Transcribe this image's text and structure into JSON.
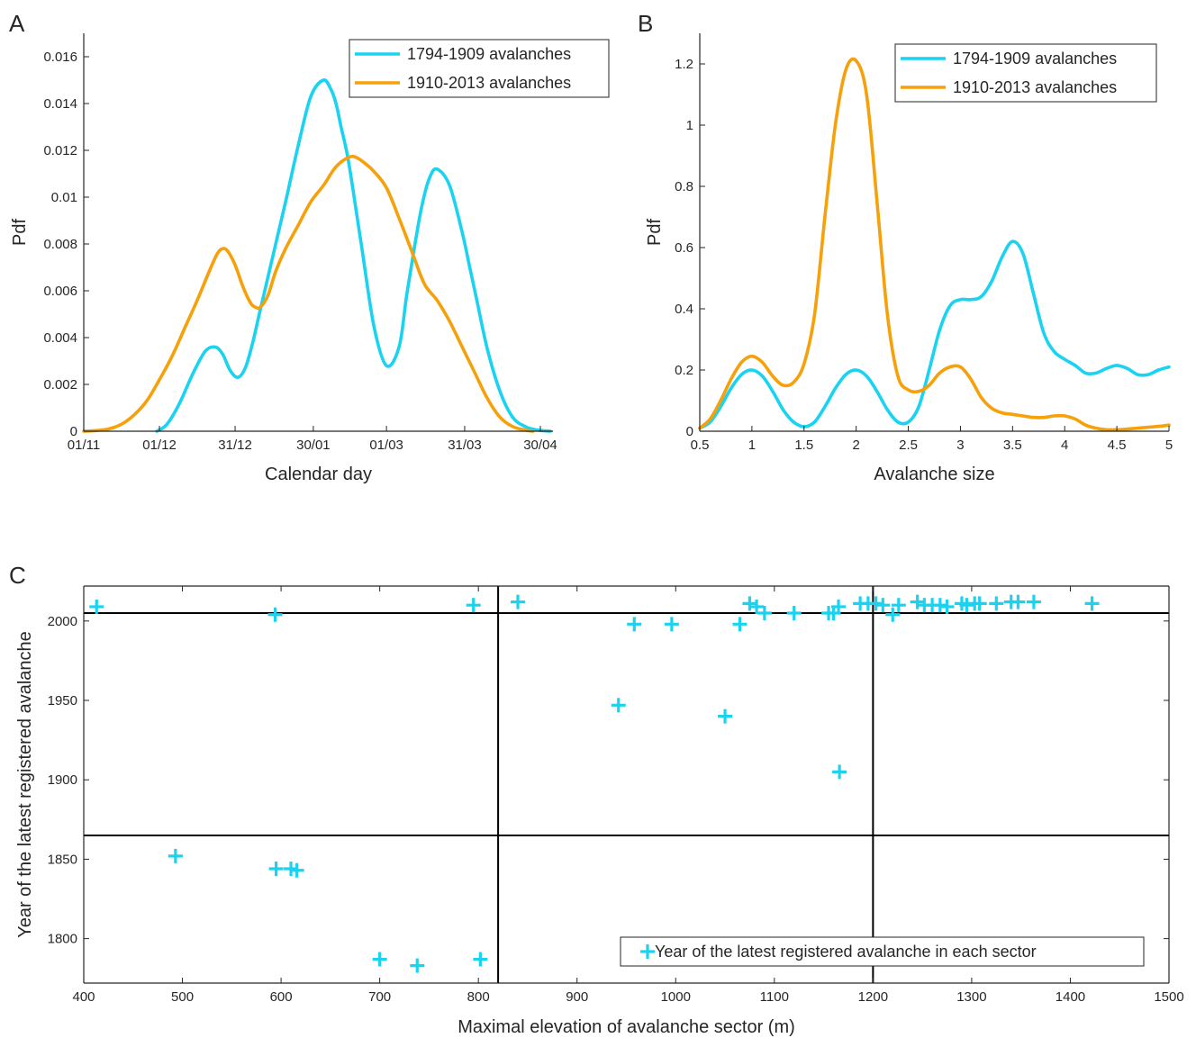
{
  "panels": {
    "A": {
      "letter": "A"
    },
    "B": {
      "letter": "B"
    },
    "C": {
      "letter": "C"
    }
  },
  "colors": {
    "cyan": "#19d3f0",
    "orange": "#f6a00a",
    "axis": "#262626",
    "refline": "#000000"
  },
  "chart_data": [
    {
      "id": "A",
      "type": "line",
      "xlabel": "Calendar day",
      "ylabel": "Pdf",
      "xlim": [
        0,
        186
      ],
      "ylim": [
        0,
        0.017
      ],
      "x_unit": "days since 01/11",
      "xticks": [
        {
          "value": 0,
          "label": "01/11"
        },
        {
          "value": 30,
          "label": "01/12"
        },
        {
          "value": 60,
          "label": "31/12"
        },
        {
          "value": 91,
          "label": "30/01"
        },
        {
          "value": 120,
          "label": "01/03"
        },
        {
          "value": 151,
          "label": "31/03"
        },
        {
          "value": 181,
          "label": "30/04"
        }
      ],
      "yticks": [
        {
          "value": 0,
          "label": "0"
        },
        {
          "value": 0.002,
          "label": "0.002"
        },
        {
          "value": 0.004,
          "label": "0.004"
        },
        {
          "value": 0.006,
          "label": "0.006"
        },
        {
          "value": 0.008,
          "label": "0.008"
        },
        {
          "value": 0.01,
          "label": "0.01"
        },
        {
          "value": 0.012,
          "label": "0.012"
        },
        {
          "value": 0.014,
          "label": "0.014"
        },
        {
          "value": 0.016,
          "label": "0.016"
        }
      ],
      "legend": "top-right",
      "grid": false,
      "series": [
        {
          "name": "1794-1909 avalanches",
          "color": "#19d3f0",
          "x": [
            29,
            33,
            38,
            43,
            48,
            52,
            55,
            58,
            61,
            64,
            67,
            70,
            75,
            80,
            85,
            90,
            95,
            98,
            100,
            102,
            105,
            110,
            115,
            120,
            125,
            128,
            131,
            134,
            137,
            140,
            145,
            150,
            153,
            156,
            160,
            165,
            170,
            175,
            180,
            185
          ],
          "y": [
            0,
            0.0003,
            0.0012,
            0.0024,
            0.0034,
            0.0036,
            0.0033,
            0.0026,
            0.0023,
            0.0027,
            0.0038,
            0.0052,
            0.0075,
            0.0098,
            0.0122,
            0.0143,
            0.015,
            0.0146,
            0.014,
            0.013,
            0.0115,
            0.008,
            0.0045,
            0.0028,
            0.0036,
            0.0058,
            0.0078,
            0.0096,
            0.0108,
            0.0112,
            0.0105,
            0.0085,
            0.007,
            0.0055,
            0.0035,
            0.0017,
            0.0006,
            0.0002,
            5e-05,
            0
          ]
        },
        {
          "name": "1910-2013 avalanches",
          "color": "#f6a00a",
          "x": [
            0,
            5,
            10,
            15,
            20,
            25,
            30,
            35,
            40,
            45,
            50,
            53,
            55,
            57,
            60,
            63,
            66,
            68,
            70,
            73,
            76,
            80,
            85,
            90,
            95,
            100,
            105,
            108,
            112,
            115,
            120,
            125,
            130,
            135,
            140,
            145,
            150,
            155,
            160,
            165,
            170,
            175,
            178
          ],
          "y": [
            0,
            3e-05,
            0.0001,
            0.0003,
            0.0007,
            0.0013,
            0.0022,
            0.0032,
            0.0044,
            0.0056,
            0.0069,
            0.0076,
            0.0078,
            0.0077,
            0.0071,
            0.0062,
            0.0055,
            0.0053,
            0.0053,
            0.0058,
            0.0068,
            0.0078,
            0.0088,
            0.0098,
            0.0105,
            0.0113,
            0.0117,
            0.0117,
            0.0114,
            0.0111,
            0.0104,
            0.0091,
            0.0077,
            0.0063,
            0.0056,
            0.0047,
            0.0036,
            0.0025,
            0.0014,
            0.0006,
            0.0002,
            5e-05,
            0
          ]
        }
      ]
    },
    {
      "id": "B",
      "type": "line",
      "xlabel": "Avalanche size",
      "ylabel": "Pdf",
      "xlim": [
        0.5,
        5
      ],
      "ylim": [
        0,
        1.3
      ],
      "xticks": [
        {
          "value": 0.5,
          "label": "0.5"
        },
        {
          "value": 1,
          "label": "1"
        },
        {
          "value": 1.5,
          "label": "1.5"
        },
        {
          "value": 2,
          "label": "2"
        },
        {
          "value": 2.5,
          "label": "2.5"
        },
        {
          "value": 3,
          "label": "3"
        },
        {
          "value": 3.5,
          "label": "3.5"
        },
        {
          "value": 4,
          "label": "4"
        },
        {
          "value": 4.5,
          "label": "4.5"
        },
        {
          "value": 5,
          "label": "5"
        }
      ],
      "yticks": [
        {
          "value": 0,
          "label": "0"
        },
        {
          "value": 0.2,
          "label": "0.2"
        },
        {
          "value": 0.4,
          "label": "0.4"
        },
        {
          "value": 0.6,
          "label": "0.6"
        },
        {
          "value": 0.8,
          "label": "0.8"
        },
        {
          "value": 1,
          "label": "1"
        },
        {
          "value": 1.2,
          "label": "1.2"
        }
      ],
      "legend": "top-right",
      "grid": false,
      "series": [
        {
          "name": "1794-1909 avalanches",
          "color": "#19d3f0",
          "x": [
            0.5,
            0.6,
            0.7,
            0.8,
            0.9,
            1.0,
            1.1,
            1.2,
            1.3,
            1.4,
            1.5,
            1.6,
            1.7,
            1.8,
            1.9,
            2.0,
            2.1,
            2.2,
            2.3,
            2.4,
            2.5,
            2.6,
            2.7,
            2.8,
            2.9,
            3.0,
            3.1,
            3.2,
            3.3,
            3.4,
            3.5,
            3.6,
            3.7,
            3.8,
            3.9,
            4.0,
            4.1,
            4.2,
            4.3,
            4.4,
            4.5,
            4.6,
            4.7,
            4.8,
            4.9,
            5.0
          ],
          "y": [
            0.01,
            0.03,
            0.08,
            0.14,
            0.185,
            0.2,
            0.18,
            0.13,
            0.07,
            0.03,
            0.015,
            0.03,
            0.08,
            0.14,
            0.185,
            0.2,
            0.18,
            0.13,
            0.07,
            0.03,
            0.03,
            0.08,
            0.2,
            0.33,
            0.41,
            0.43,
            0.43,
            0.44,
            0.49,
            0.57,
            0.62,
            0.58,
            0.45,
            0.32,
            0.26,
            0.235,
            0.215,
            0.19,
            0.19,
            0.205,
            0.215,
            0.205,
            0.185,
            0.185,
            0.2,
            0.21
          ]
        },
        {
          "name": "1910-2013 avalanches",
          "color": "#f6a00a",
          "x": [
            0.5,
            0.6,
            0.7,
            0.8,
            0.9,
            1.0,
            1.1,
            1.2,
            1.3,
            1.4,
            1.5,
            1.6,
            1.7,
            1.8,
            1.9,
            2.0,
            2.1,
            2.2,
            2.3,
            2.4,
            2.5,
            2.6,
            2.7,
            2.8,
            2.9,
            3.0,
            3.1,
            3.2,
            3.3,
            3.4,
            3.5,
            3.6,
            3.7,
            3.8,
            3.9,
            4.0,
            4.1,
            4.2,
            4.3,
            4.4,
            4.5,
            4.6,
            4.7,
            4.8,
            4.9,
            5.0
          ],
          "y": [
            0.01,
            0.04,
            0.1,
            0.17,
            0.225,
            0.245,
            0.225,
            0.18,
            0.15,
            0.16,
            0.22,
            0.38,
            0.7,
            1.0,
            1.18,
            1.21,
            1.1,
            0.75,
            0.38,
            0.18,
            0.135,
            0.13,
            0.15,
            0.19,
            0.21,
            0.21,
            0.17,
            0.11,
            0.075,
            0.06,
            0.055,
            0.05,
            0.045,
            0.045,
            0.05,
            0.05,
            0.04,
            0.02,
            0.01,
            0.005,
            0.005,
            0.007,
            0.01,
            0.013,
            0.016,
            0.02
          ]
        }
      ]
    },
    {
      "id": "C",
      "type": "scatter",
      "xlabel": "Maximal elevation of avalanche sector (m)",
      "ylabel": "Year of the latest registered avalanche",
      "xlim": [
        400,
        1500
      ],
      "ylim": [
        1772,
        2022
      ],
      "xticks": [
        {
          "value": 400,
          "label": "400"
        },
        {
          "value": 500,
          "label": "500"
        },
        {
          "value": 600,
          "label": "600"
        },
        {
          "value": 700,
          "label": "700"
        },
        {
          "value": 800,
          "label": "800"
        },
        {
          "value": 900,
          "label": "900"
        },
        {
          "value": 1000,
          "label": "1000"
        },
        {
          "value": 1100,
          "label": "1100"
        },
        {
          "value": 1200,
          "label": "1200"
        },
        {
          "value": 1300,
          "label": "1300"
        },
        {
          "value": 1400,
          "label": "1400"
        },
        {
          "value": 1500,
          "label": "1500"
        }
      ],
      "yticks": [
        {
          "value": 1800,
          "label": "1800"
        },
        {
          "value": 1850,
          "label": "1850"
        },
        {
          "value": 1900,
          "label": "1900"
        },
        {
          "value": 1950,
          "label": "1950"
        },
        {
          "value": 2000,
          "label": "2000"
        }
      ],
      "legend": "bottom-right",
      "grid": false,
      "reference_lines": {
        "vertical": [
          820,
          1200
        ],
        "horizontal": [
          1865,
          2005
        ]
      },
      "series": [
        {
          "name": "Year of the latest registered avalanche in each sector",
          "color": "#19d3f0",
          "marker": "+",
          "points": [
            [
              413,
              2009
            ],
            [
              493,
              1852
            ],
            [
              594,
              2004
            ],
            [
              595,
              1844
            ],
            [
              610,
              1844
            ],
            [
              616,
              1843
            ],
            [
              700,
              1787
            ],
            [
              738,
              1783
            ],
            [
              795,
              2010
            ],
            [
              802,
              1787
            ],
            [
              840,
              2012
            ],
            [
              942,
              1947
            ],
            [
              958,
              1998
            ],
            [
              996,
              1998
            ],
            [
              1050,
              1940
            ],
            [
              1065,
              1998
            ],
            [
              1075,
              2011
            ],
            [
              1082,
              2009
            ],
            [
              1090,
              2005
            ],
            [
              1120,
              2005
            ],
            [
              1155,
              2005
            ],
            [
              1160,
              2005
            ],
            [
              1165,
              2009
            ],
            [
              1166,
              1905
            ],
            [
              1187,
              2011
            ],
            [
              1195,
              2011
            ],
            [
              1203,
              2011
            ],
            [
              1210,
              2010
            ],
            [
              1220,
              2004
            ],
            [
              1226,
              2010
            ],
            [
              1245,
              2012
            ],
            [
              1252,
              2010
            ],
            [
              1260,
              2010
            ],
            [
              1268,
              2010
            ],
            [
              1275,
              2009
            ],
            [
              1290,
              2011
            ],
            [
              1295,
              2010
            ],
            [
              1303,
              2011
            ],
            [
              1308,
              2011
            ],
            [
              1325,
              2011
            ],
            [
              1340,
              2012
            ],
            [
              1347,
              2012
            ],
            [
              1363,
              2012
            ],
            [
              1422,
              2011
            ]
          ]
        }
      ]
    }
  ]
}
